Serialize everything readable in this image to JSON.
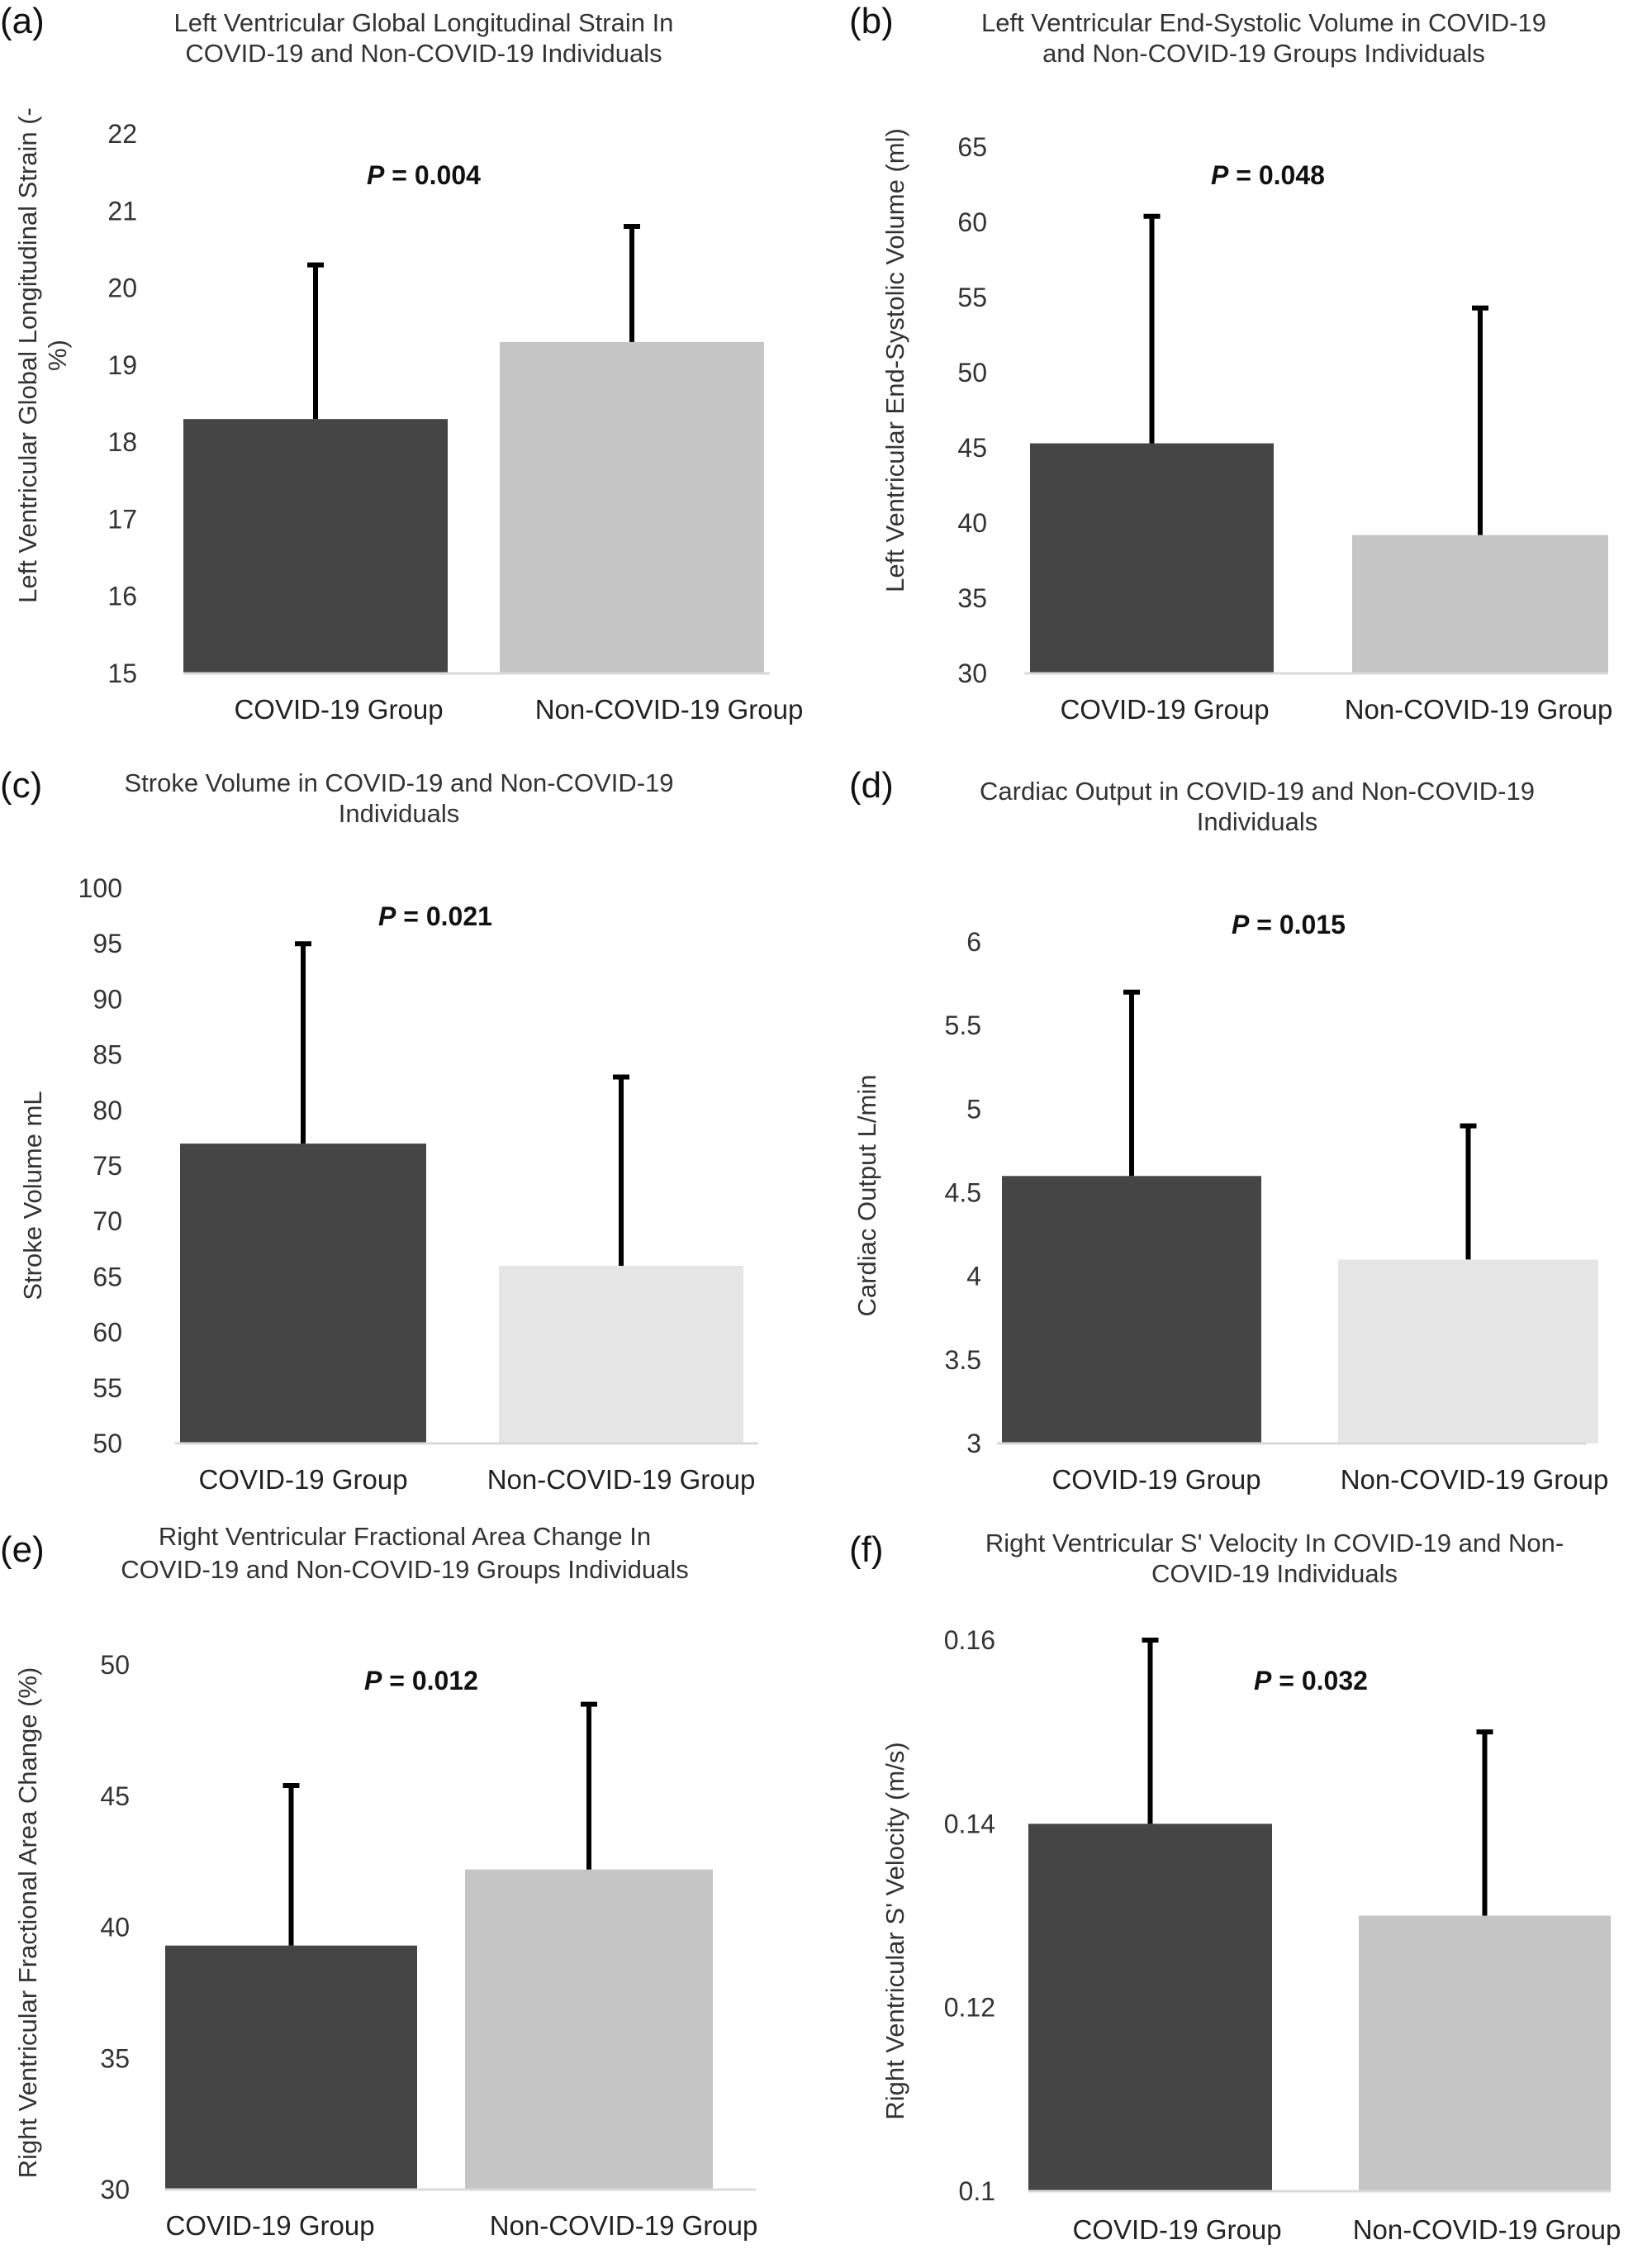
{
  "colors": {
    "covid": "#454545",
    "non_covid_mid": "#c5c5c5",
    "non_covid_light": "#e6e6e6"
  },
  "chart_data": [
    {
      "panel": "(a)",
      "type": "bar",
      "title_lines": [
        "Left Ventricular Global Longitudinal Strain In",
        "COVID-19 and Non-COVID-19 Individuals"
      ],
      "ylabel_lines": [
        "Left Ventricular Global Longitudinal Strain (-",
        "%)"
      ],
      "categories": [
        "COVID-19 Group",
        "Non-COVID-19 Group"
      ],
      "values": [
        18.3,
        19.3
      ],
      "error_upper": [
        20.3,
        20.8
      ],
      "yticks": [
        "15",
        "16",
        "17",
        "18",
        "19",
        "20",
        "21",
        "22"
      ],
      "ylim": [
        15,
        22
      ],
      "p_prefix": "P",
      "p_value": " = 0.004",
      "bar_colors": [
        "#454545",
        "#c5c5c5"
      ]
    },
    {
      "panel": "(b)",
      "type": "bar",
      "title_lines": [
        "Left Ventricular End-Systolic Volume in COVID-19",
        "and Non-COVID-19 Groups Individuals"
      ],
      "ylabel_lines": [
        "Left Ventricular End-Systolic Volume (ml)"
      ],
      "categories": [
        "COVID-19 Group",
        "Non-COVID-19 Group"
      ],
      "values": [
        45.3,
        39.2
      ],
      "error_upper": [
        60.4,
        54.3
      ],
      "yticks": [
        "30",
        "35",
        "40",
        "45",
        "50",
        "55",
        "60",
        "65"
      ],
      "ylim": [
        30,
        65
      ],
      "p_prefix": "P",
      "p_value": " = 0.048",
      "bar_colors": [
        "#454545",
        "#c5c5c5"
      ]
    },
    {
      "panel": "(c)",
      "type": "bar",
      "title_lines": [
        "Stroke Volume  in COVID-19 and Non-COVID-19",
        "Individuals"
      ],
      "ylabel_lines": [
        "Stroke Volume  mL"
      ],
      "categories": [
        "COVID-19 Group",
        "Non-COVID-19 Group"
      ],
      "values": [
        77,
        66
      ],
      "error_upper": [
        95,
        83
      ],
      "yticks": [
        "50",
        "55",
        "60",
        "65",
        "70",
        "75",
        "80",
        "85",
        "90",
        "95",
        "100"
      ],
      "ylim": [
        50,
        100
      ],
      "p_prefix": "P",
      "p_value": " = 0.021",
      "bar_colors": [
        "#454545",
        "#e6e6e6"
      ]
    },
    {
      "panel": "(d)",
      "type": "bar",
      "title_lines": [
        "Cardiac Output  in COVID-19 and Non-COVID-19",
        "Individuals"
      ],
      "ylabel_lines": [
        "Cardiac Output  L/min"
      ],
      "categories": [
        "COVID-19 Group",
        "Non-COVID-19 Group"
      ],
      "values": [
        4.6,
        4.1
      ],
      "error_upper": [
        5.7,
        4.9
      ],
      "yticks": [
        "3",
        "3.5",
        "4",
        "4.5",
        "5",
        "5.5",
        "6"
      ],
      "ylim": [
        3,
        6
      ],
      "p_prefix": "P",
      "p_value": " = 0.015",
      "bar_colors": [
        "#454545",
        "#e6e6e6"
      ]
    },
    {
      "panel": "(e)",
      "type": "bar",
      "title_lines": [
        "Right Ventricular Fractional Area Change  In",
        "COVID-19 and Non-COVID-19 Groups Individuals"
      ],
      "ylabel_lines": [
        "Right Ventricular Fractional Area Change  (%)"
      ],
      "categories": [
        "COVID-19 Group",
        "Non-COVID-19 Group"
      ],
      "values": [
        39.3,
        42.2
      ],
      "error_upper": [
        45.4,
        48.5
      ],
      "yticks": [
        "30",
        "35",
        "40",
        "45",
        "50"
      ],
      "ylim": [
        30,
        50
      ],
      "p_prefix": "P",
      "p_value": " = 0.012",
      "bar_colors": [
        "#454545",
        "#c5c5c5"
      ]
    },
    {
      "panel": "(f)",
      "type": "bar",
      "title_lines": [
        "Right Ventricular S' Velocity In COVID-19 and Non-",
        "COVID-19 Individuals"
      ],
      "ylabel_lines": [
        "Right Ventricular S' Velocity  (m/s)"
      ],
      "categories": [
        "COVID-19 Group",
        "Non-COVID-19 Group"
      ],
      "values": [
        0.14,
        0.13
      ],
      "error_upper": [
        0.16,
        0.15
      ],
      "yticks": [
        "0.1",
        "0.12",
        "0.14",
        "0.16"
      ],
      "ylim": [
        0.1,
        0.16
      ],
      "p_prefix": "P",
      "p_value": " = 0.032",
      "bar_colors": [
        "#454545",
        "#c5c5c5"
      ]
    }
  ]
}
